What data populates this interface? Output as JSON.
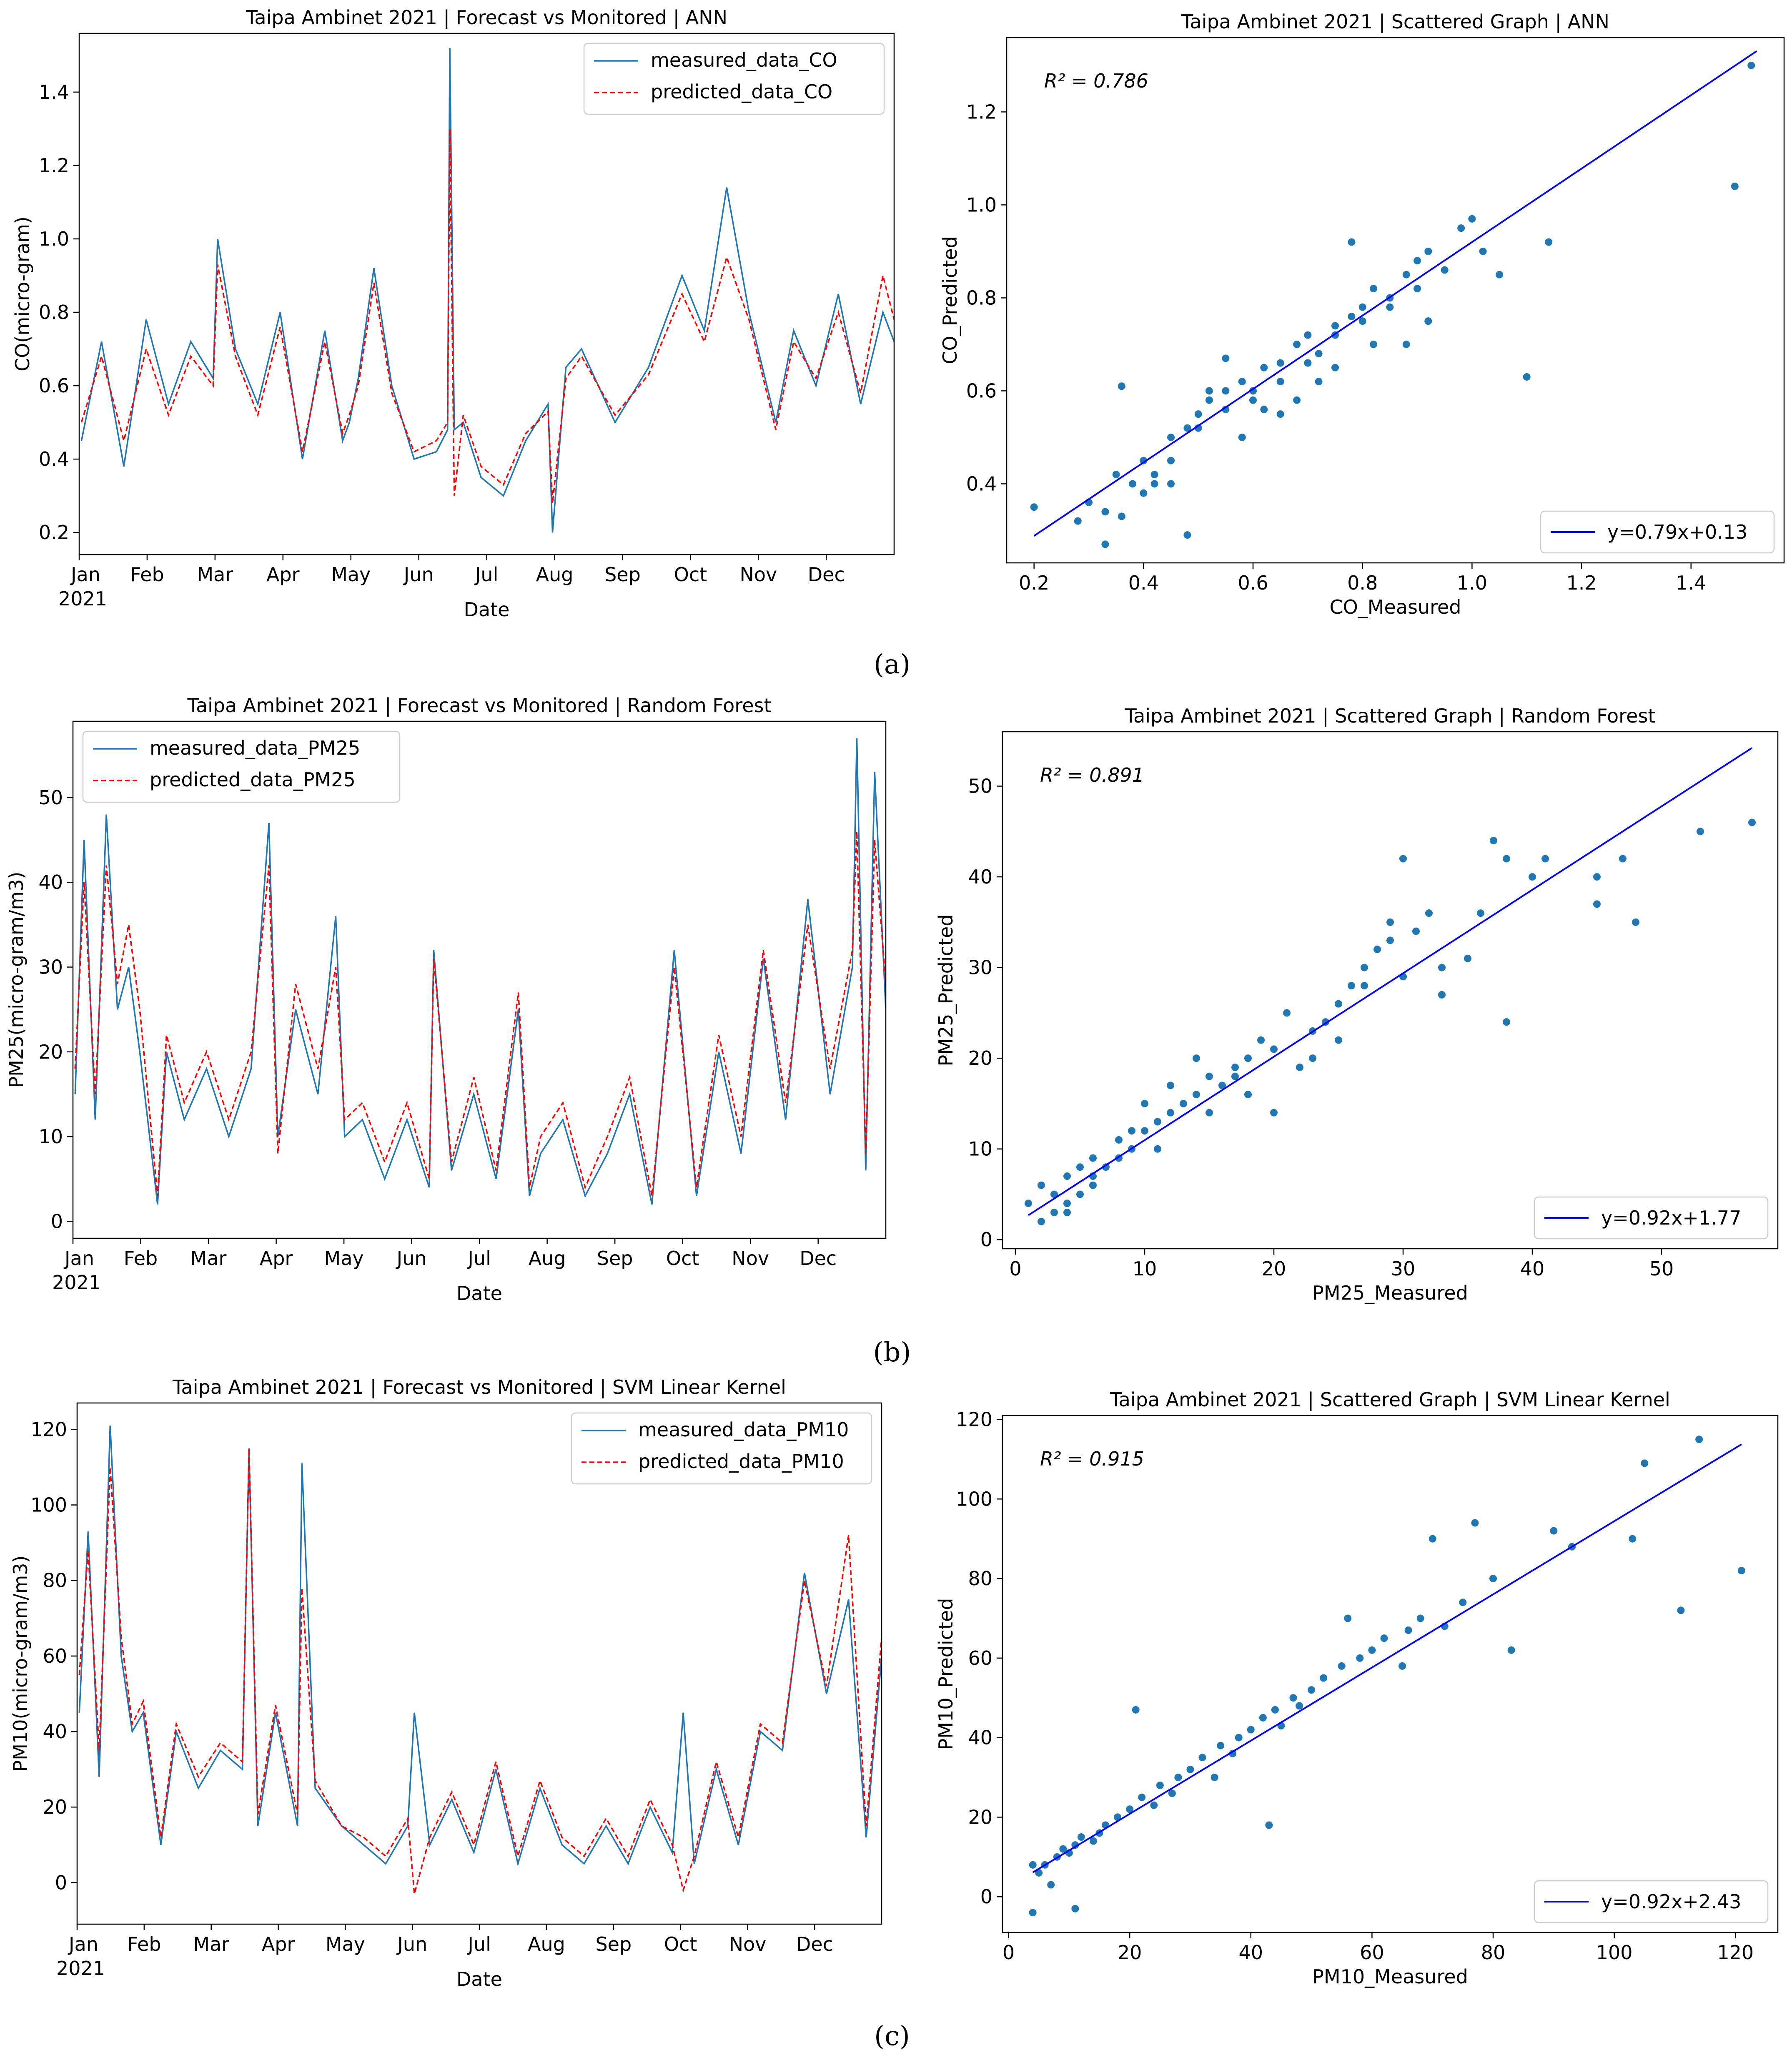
{
  "figure": {
    "captions": [
      "(a)",
      "(b)",
      "(c)"
    ]
  },
  "colors": {
    "measured": "#1f77b4",
    "predicted": "#ff0000",
    "fit": "#0000ff",
    "scatter": "#1f77b4"
  },
  "months": [
    "Jan",
    "Feb",
    "Mar",
    "Apr",
    "May",
    "Jun",
    "Jul",
    "Aug",
    "Sep",
    "Oct",
    "Nov",
    "Dec"
  ],
  "year_label": "2021",
  "chart_data": [
    {
      "id": "a-ts",
      "type": "line",
      "title": "Taipa Ambinet 2021 | Forecast vs Monitored | ANN",
      "xlabel": "Date",
      "ylabel": "CO(micro-gram)",
      "ylim": [
        0.14,
        1.56
      ],
      "yticks": [
        0.2,
        0.4,
        0.6,
        0.8,
        1.0,
        1.2,
        1.4
      ],
      "ytick_labels": [
        "0.2",
        "0.4",
        "0.6",
        "0.8",
        "1.0",
        "1.2",
        "1.4"
      ],
      "legend": "top-right",
      "x": [
        1,
        10,
        20,
        30,
        40,
        50,
        60,
        62,
        70,
        80,
        90,
        100,
        110,
        118,
        121,
        125,
        132,
        140,
        150,
        160,
        165,
        166,
        168,
        172,
        180,
        190,
        200,
        210,
        212,
        218,
        225,
        240,
        255,
        270,
        280,
        290,
        300,
        312,
        320,
        330,
        340,
        350,
        360,
        365
      ],
      "series": [
        {
          "name": "measured_data_CO",
          "style": "solid",
          "values": [
            0.45,
            0.72,
            0.38,
            0.78,
            0.55,
            0.72,
            0.62,
            1.0,
            0.7,
            0.55,
            0.8,
            0.4,
            0.75,
            0.45,
            0.5,
            0.62,
            0.92,
            0.6,
            0.4,
            0.42,
            0.48,
            1.52,
            0.48,
            0.5,
            0.35,
            0.3,
            0.45,
            0.55,
            0.2,
            0.65,
            0.7,
            0.5,
            0.65,
            0.9,
            0.75,
            1.14,
            0.8,
            0.5,
            0.75,
            0.6,
            0.85,
            0.55,
            0.8,
            0.72
          ]
        },
        {
          "name": "predicted_data_CO",
          "style": "dashed",
          "values": [
            0.5,
            0.68,
            0.45,
            0.7,
            0.52,
            0.68,
            0.6,
            0.93,
            0.68,
            0.52,
            0.76,
            0.42,
            0.72,
            0.47,
            0.52,
            0.6,
            0.88,
            0.58,
            0.42,
            0.45,
            0.5,
            1.3,
            0.3,
            0.52,
            0.38,
            0.33,
            0.47,
            0.53,
            0.28,
            0.62,
            0.68,
            0.52,
            0.63,
            0.85,
            0.72,
            0.95,
            0.78,
            0.48,
            0.72,
            0.62,
            0.8,
            0.58,
            0.9,
            0.78
          ]
        }
      ]
    },
    {
      "id": "a-sc",
      "type": "scatter",
      "title": "Taipa Ambinet 2021 | Scattered Graph | ANN",
      "xlabel": "CO_Measured",
      "ylabel": "CO_Predicted",
      "xlim": [
        0.15,
        1.57
      ],
      "ylim": [
        0.23,
        1.36
      ],
      "xticks": [
        0.2,
        0.4,
        0.6,
        0.8,
        1.0,
        1.2,
        1.4
      ],
      "xtick_labels": [
        "0.2",
        "0.4",
        "0.6",
        "0.8",
        "1.0",
        "1.2",
        "1.4"
      ],
      "yticks": [
        0.4,
        0.6,
        0.8,
        1.0,
        1.2
      ],
      "ytick_labels": [
        "0.4",
        "0.6",
        "0.8",
        "1.0",
        "1.2"
      ],
      "annotation": "R² = 0.786",
      "fit": {
        "label": "y=0.79x+0.13",
        "slope": 0.79,
        "intercept": 0.13,
        "x_range": [
          0.2,
          1.52
        ]
      },
      "legend": "bottom-right",
      "points": {
        "x": [
          0.2,
          0.28,
          0.3,
          0.33,
          0.35,
          0.36,
          0.38,
          0.4,
          0.42,
          0.45,
          0.48,
          0.5,
          0.52,
          0.55,
          0.58,
          0.6,
          0.62,
          0.65,
          0.68,
          0.7,
          0.72,
          0.75,
          0.78,
          0.8,
          0.82,
          0.85,
          0.88,
          0.9,
          0.92,
          0.95,
          1.0,
          1.05,
          1.1,
          1.14,
          1.48,
          1.51,
          0.4,
          0.45,
          0.5,
          0.55,
          0.6,
          0.65,
          0.7,
          0.75,
          0.8,
          0.85,
          0.9,
          0.48,
          0.58,
          0.68,
          0.78,
          0.88,
          0.98,
          0.36,
          0.33,
          0.42,
          0.52,
          0.62,
          0.72,
          0.82,
          0.92,
          1.02,
          0.75,
          0.65,
          0.55,
          0.45
        ],
        "y": [
          0.35,
          0.32,
          0.36,
          0.34,
          0.42,
          0.61,
          0.4,
          0.45,
          0.42,
          0.5,
          0.52,
          0.55,
          0.58,
          0.6,
          0.62,
          0.58,
          0.65,
          0.66,
          0.7,
          0.72,
          0.68,
          0.74,
          0.76,
          0.78,
          0.82,
          0.8,
          0.85,
          0.88,
          0.9,
          0.86,
          0.97,
          0.85,
          0.63,
          0.92,
          1.04,
          1.3,
          0.38,
          0.45,
          0.52,
          0.56,
          0.6,
          0.62,
          0.66,
          0.72,
          0.75,
          0.78,
          0.82,
          0.29,
          0.5,
          0.58,
          0.92,
          0.7,
          0.95,
          0.33,
          0.27,
          0.4,
          0.6,
          0.56,
          0.62,
          0.7,
          0.75,
          0.9,
          0.65,
          0.55,
          0.67,
          0.4
        ]
      }
    },
    {
      "id": "b-ts",
      "type": "line",
      "title": "Taipa Ambinet 2021 | Forecast vs Monitored | Random Forest",
      "xlabel": "Date",
      "ylabel": "PM25(micro-gram/m3)",
      "ylim": [
        -2,
        59
      ],
      "yticks": [
        0,
        10,
        20,
        30,
        40,
        50
      ],
      "ytick_labels": [
        "0",
        "10",
        "20",
        "30",
        "40",
        "50"
      ],
      "legend": "top-left",
      "x": [
        1,
        5,
        10,
        15,
        20,
        25,
        30,
        38,
        42,
        50,
        60,
        70,
        80,
        88,
        92,
        100,
        110,
        118,
        122,
        130,
        140,
        150,
        160,
        162,
        170,
        180,
        190,
        200,
        205,
        210,
        220,
        230,
        240,
        250,
        260,
        270,
        280,
        290,
        300,
        310,
        320,
        330,
        340,
        350,
        352,
        356,
        360,
        365
      ],
      "series": [
        {
          "name": "measured_data_PM25",
          "style": "solid",
          "values": [
            15,
            45,
            12,
            48,
            25,
            30,
            20,
            2,
            20,
            12,
            18,
            10,
            18,
            47,
            10,
            25,
            15,
            36,
            10,
            12,
            5,
            12,
            4,
            32,
            6,
            15,
            5,
            25,
            3,
            8,
            12,
            3,
            8,
            15,
            2,
            32,
            3,
            20,
            8,
            31,
            12,
            38,
            15,
            30,
            57,
            6,
            53,
            25
          ]
        },
        {
          "name": "predicted_data_PM25",
          "style": "dashed",
          "values": [
            18,
            40,
            15,
            42,
            28,
            35,
            25,
            3,
            22,
            14,
            20,
            12,
            20,
            42,
            8,
            28,
            18,
            30,
            12,
            14,
            7,
            14,
            5,
            31,
            7,
            17,
            6,
            27,
            4,
            10,
            14,
            4,
            10,
            17,
            3,
            30,
            4,
            22,
            10,
            32,
            14,
            35,
            18,
            32,
            46,
            8,
            45,
            28
          ]
        }
      ]
    },
    {
      "id": "b-sc",
      "type": "scatter",
      "title": "Taipa Ambinet 2021 | Scattered Graph | Random Forest",
      "xlabel": "PM25_Measured",
      "ylabel": "PM25_Predicted",
      "xlim": [
        -1,
        59
      ],
      "ylim": [
        -1,
        56
      ],
      "xticks": [
        0,
        10,
        20,
        30,
        40,
        50
      ],
      "xtick_labels": [
        "0",
        "10",
        "20",
        "30",
        "40",
        "50"
      ],
      "yticks": [
        0,
        10,
        20,
        30,
        40,
        50
      ],
      "ytick_labels": [
        "0",
        "10",
        "20",
        "30",
        "40",
        "50"
      ],
      "annotation": "R² = 0.891",
      "fit": {
        "label": "y=0.92x+1.77",
        "slope": 0.92,
        "intercept": 1.77,
        "x_range": [
          1,
          57
        ]
      },
      "legend": "bottom-right",
      "points": {
        "x": [
          1,
          2,
          2,
          3,
          3,
          4,
          4,
          5,
          5,
          6,
          6,
          7,
          8,
          8,
          9,
          10,
          10,
          11,
          12,
          12,
          13,
          14,
          15,
          15,
          16,
          17,
          18,
          18,
          19,
          20,
          21,
          22,
          23,
          24,
          25,
          25,
          26,
          27,
          28,
          29,
          30,
          30,
          31,
          32,
          33,
          35,
          36,
          37,
          38,
          38,
          40,
          41,
          45,
          45,
          47,
          48,
          53,
          57,
          4,
          6,
          9,
          11,
          14,
          17,
          20,
          23,
          27,
          29,
          33
        ],
        "y": [
          4,
          2,
          6,
          3,
          5,
          4,
          7,
          5,
          8,
          7,
          9,
          8,
          9,
          11,
          10,
          12,
          15,
          13,
          14,
          17,
          15,
          16,
          18,
          14,
          17,
          19,
          20,
          16,
          22,
          21,
          25,
          19,
          23,
          24,
          26,
          22,
          28,
          30,
          32,
          33,
          29,
          42,
          34,
          36,
          27,
          31,
          36,
          44,
          24,
          42,
          40,
          42,
          37,
          40,
          42,
          35,
          45,
          46,
          3,
          6,
          12,
          10,
          20,
          18,
          14,
          20,
          28,
          35,
          30
        ]
      }
    },
    {
      "id": "c-ts",
      "type": "line",
      "title": "Taipa Ambinet 2021 | Forecast vs Monitored | SVM Linear Kernel",
      "xlabel": "Date",
      "ylabel": "PM10(micro-gram/m3)",
      "ylim": [
        -11,
        127
      ],
      "yticks": [
        0,
        20,
        40,
        60,
        80,
        100,
        120
      ],
      "ytick_labels": [
        "0",
        "20",
        "40",
        "60",
        "80",
        "100",
        "120"
      ],
      "legend": "top-right",
      "x": [
        1,
        5,
        10,
        15,
        20,
        25,
        30,
        38,
        45,
        55,
        65,
        75,
        78,
        82,
        90,
        100,
        102,
        108,
        120,
        130,
        140,
        150,
        153,
        160,
        170,
        180,
        190,
        200,
        210,
        220,
        230,
        240,
        250,
        260,
        270,
        275,
        280,
        290,
        300,
        310,
        320,
        330,
        340,
        350,
        358,
        365
      ],
      "series": [
        {
          "name": "measured_data_PM10",
          "style": "solid",
          "values": [
            45,
            93,
            28,
            121,
            60,
            40,
            45,
            10,
            40,
            25,
            35,
            30,
            115,
            15,
            45,
            15,
            111,
            25,
            15,
            10,
            5,
            15,
            45,
            10,
            22,
            8,
            30,
            5,
            25,
            10,
            5,
            15,
            5,
            20,
            8,
            45,
            5,
            30,
            10,
            40,
            35,
            82,
            50,
            75,
            12,
            60
          ]
        },
        {
          "name": "predicted_data_PM10",
          "style": "dashed",
          "values": [
            55,
            88,
            35,
            110,
            65,
            42,
            48,
            12,
            42,
            28,
            37,
            32,
            115,
            18,
            47,
            18,
            78,
            27,
            15,
            12,
            7,
            17,
            -3,
            12,
            24,
            10,
            32,
            7,
            27,
            12,
            7,
            17,
            7,
            22,
            10,
            -2,
            7,
            32,
            12,
            42,
            37,
            80,
            52,
            92,
            15,
            65
          ]
        }
      ]
    },
    {
      "id": "c-sc",
      "type": "scatter",
      "title": "Taipa Ambinet 2021 | Scattered Graph | SVM Linear Kernel",
      "xlabel": "PM10_Measured",
      "ylabel": "PM10_Predicted",
      "xlim": [
        -1,
        127
      ],
      "ylim": [
        -9,
        121
      ],
      "xticks": [
        0,
        20,
        40,
        60,
        80,
        100,
        120
      ],
      "xtick_labels": [
        "0",
        "20",
        "40",
        "60",
        "80",
        "100",
        "120"
      ],
      "yticks": [
        0,
        20,
        40,
        60,
        80,
        100,
        120
      ],
      "ytick_labels": [
        "0",
        "20",
        "40",
        "60",
        "80",
        "100",
        "120"
      ],
      "annotation": "R² = 0.915",
      "fit": {
        "label": "y=0.92x+2.43",
        "slope": 0.92,
        "intercept": 2.43,
        "x_range": [
          4,
          121
        ]
      },
      "legend": "bottom-right",
      "points": {
        "x": [
          4,
          5,
          6,
          7,
          8,
          9,
          10,
          11,
          12,
          14,
          15,
          16,
          18,
          20,
          22,
          24,
          25,
          27,
          28,
          30,
          32,
          34,
          35,
          37,
          38,
          40,
          42,
          44,
          45,
          47,
          48,
          50,
          52,
          55,
          58,
          60,
          62,
          65,
          68,
          70,
          72,
          75,
          77,
          80,
          83,
          90,
          93,
          103,
          105,
          111,
          114,
          121,
          4,
          11,
          21,
          43,
          56,
          66
        ],
        "y": [
          -4,
          6,
          8,
          3,
          10,
          12,
          11,
          13,
          15,
          14,
          16,
          18,
          20,
          22,
          25,
          23,
          28,
          26,
          30,
          32,
          35,
          30,
          38,
          36,
          40,
          42,
          45,
          47,
          43,
          50,
          48,
          52,
          55,
          58,
          60,
          62,
          65,
          58,
          70,
          90,
          68,
          74,
          94,
          80,
          62,
          92,
          88,
          90,
          109,
          72,
          115,
          82,
          8,
          -3,
          47,
          18,
          70,
          67
        ]
      }
    }
  ]
}
